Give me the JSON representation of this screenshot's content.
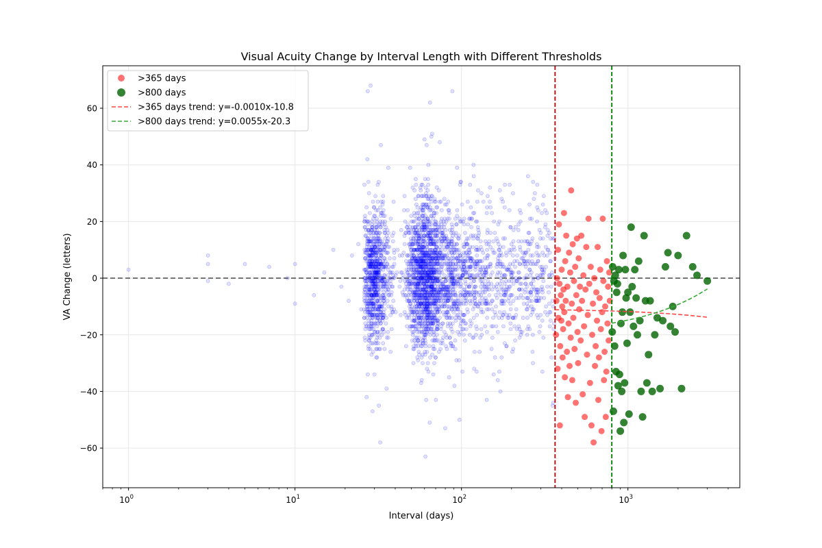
{
  "chart_data": {
    "type": "scatter",
    "title": "Visual Acuity Change by Interval Length with Different Thresholds",
    "xlabel": "Interval (days)",
    "ylabel": "VA Change (letters)",
    "xscale": "log",
    "xlim": [
      0.7,
      4700
    ],
    "ylim": [
      -74,
      75
    ],
    "x_ticks": [
      {
        "value": 1,
        "base": "10",
        "exp": "0"
      },
      {
        "value": 10,
        "base": "10",
        "exp": "1"
      },
      {
        "value": 100,
        "base": "10",
        "exp": "2"
      },
      {
        "value": 1000,
        "base": "10",
        "exp": "3"
      }
    ],
    "y_ticks": [
      {
        "value": -60,
        "label": "−60"
      },
      {
        "value": -40,
        "label": "−40"
      },
      {
        "value": -20,
        "label": "−20"
      },
      {
        "value": 0,
        "label": "0"
      },
      {
        "value": 20,
        "label": "20"
      },
      {
        "value": 40,
        "label": "40"
      },
      {
        "value": 60,
        "label": "60"
      }
    ],
    "grid": true,
    "legend_position": "top-left",
    "colors": {
      "all": "#0000ff",
      "gt365": "#ff0000",
      "gt800": "#006400",
      "gt365_trend": "#ff4444",
      "gt800_trend": "#33aa33",
      "zero_line": "#555555"
    },
    "vertical_lines": [
      {
        "x": 365,
        "color": "#cc0000"
      },
      {
        "x": 800,
        "color": "#008000"
      }
    ],
    "series": [
      {
        "name": ">365 days",
        "marker": "circle",
        "color": "#ff0000",
        "points": [
          [
            370,
            -20
          ],
          [
            372,
            -8
          ],
          [
            375,
            0
          ],
          [
            378,
            -32
          ],
          [
            380,
            10
          ],
          [
            382,
            -14
          ],
          [
            385,
            19
          ],
          [
            388,
            -2
          ],
          [
            390,
            -52
          ],
          [
            392,
            -24
          ],
          [
            395,
            -6
          ],
          [
            398,
            -15
          ],
          [
            400,
            3
          ],
          [
            403,
            -10
          ],
          [
            405,
            -28
          ],
          [
            408,
            -18
          ],
          [
            410,
            -4
          ],
          [
            413,
            23
          ],
          [
            415,
            -12
          ],
          [
            418,
            -35
          ],
          [
            420,
            6
          ],
          [
            423,
            -8
          ],
          [
            426,
            15
          ],
          [
            430,
            -26
          ],
          [
            433,
            -3
          ],
          [
            436,
            -42
          ],
          [
            440,
            -16
          ],
          [
            443,
            9
          ],
          [
            446,
            -31
          ],
          [
            450,
            2
          ],
          [
            453,
            -21
          ],
          [
            456,
            31
          ],
          [
            460,
            -9
          ],
          [
            463,
            -36
          ],
          [
            466,
            12
          ],
          [
            470,
            -14
          ],
          [
            474,
            -1
          ],
          [
            478,
            -25
          ],
          [
            482,
            4
          ],
          [
            486,
            -44
          ],
          [
            490,
            -6
          ],
          [
            494,
            14
          ],
          [
            498,
            -19
          ],
          [
            502,
            -30
          ],
          [
            506,
            7
          ],
          [
            510,
            -11
          ],
          [
            515,
            -3
          ],
          [
            520,
            -22
          ],
          [
            525,
            15
          ],
          [
            530,
            -8
          ],
          [
            535,
            -41
          ],
          [
            540,
            1
          ],
          [
            545,
            -17
          ],
          [
            550,
            -49
          ],
          [
            556,
            -4
          ],
          [
            562,
            11
          ],
          [
            568,
            -27
          ],
          [
            574,
            -13
          ],
          [
            580,
            21
          ],
          [
            586,
            -2
          ],
          [
            592,
            -37
          ],
          [
            598,
            4
          ],
          [
            604,
            -52
          ],
          [
            610,
            -20
          ],
          [
            616,
            -9
          ],
          [
            622,
            -58
          ],
          [
            628,
            0
          ],
          [
            634,
            -31
          ],
          [
            640,
            -24
          ],
          [
            646,
            -5
          ],
          [
            652,
            -15
          ],
          [
            658,
            11
          ],
          [
            664,
            -43
          ],
          [
            670,
            -28
          ],
          [
            676,
            -7
          ],
          [
            682,
            3
          ],
          [
            688,
            -18
          ],
          [
            694,
            -54
          ],
          [
            700,
            -12
          ],
          [
            706,
            21
          ],
          [
            712,
            -1
          ],
          [
            718,
            -36
          ],
          [
            724,
            -26
          ],
          [
            730,
            -10
          ],
          [
            736,
            -49
          ],
          [
            742,
            -33
          ],
          [
            748,
            6
          ],
          [
            754,
            -16
          ],
          [
            760,
            -3
          ],
          [
            766,
            -22
          ],
          [
            772,
            2
          ],
          [
            778,
            -8
          ]
        ]
      },
      {
        "name": ">800 days",
        "marker": "circle",
        "color": "#006400",
        "points": [
          [
            805,
            -19
          ],
          [
            810,
            4
          ],
          [
            818,
            -47
          ],
          [
            825,
            -1
          ],
          [
            832,
            -24
          ],
          [
            840,
            1
          ],
          [
            848,
            -33
          ],
          [
            856,
            -5
          ],
          [
            865,
            -2
          ],
          [
            873,
            -38
          ],
          [
            882,
            3
          ],
          [
            890,
            -34
          ],
          [
            900,
            -54
          ],
          [
            908,
            -16
          ],
          [
            918,
            -40
          ],
          [
            926,
            -12
          ],
          [
            935,
            8
          ],
          [
            945,
            -51
          ],
          [
            955,
            -37
          ],
          [
            965,
            3
          ],
          [
            975,
            -7
          ],
          [
            988,
            -23
          ],
          [
            1000,
            -5
          ],
          [
            1015,
            -48
          ],
          [
            1030,
            -12
          ],
          [
            1045,
            18
          ],
          [
            1060,
            -3
          ],
          [
            1080,
            -17
          ],
          [
            1100,
            3
          ],
          [
            1120,
            -7
          ],
          [
            1140,
            -20
          ],
          [
            1160,
            6
          ],
          [
            1180,
            -15
          ],
          [
            1200,
            -40
          ],
          [
            1225,
            -49
          ],
          [
            1250,
            15
          ],
          [
            1275,
            -8
          ],
          [
            1300,
            -37
          ],
          [
            1330,
            -27
          ],
          [
            1360,
            -8
          ],
          [
            1400,
            -40
          ],
          [
            1450,
            -20
          ],
          [
            1500,
            -14
          ],
          [
            1560,
            -39
          ],
          [
            1620,
            -15
          ],
          [
            1680,
            4
          ],
          [
            1740,
            9
          ],
          [
            1800,
            -17
          ],
          [
            1860,
            -10
          ],
          [
            1920,
            -19
          ],
          [
            2000,
            8
          ],
          [
            2100,
            -39
          ],
          [
            2250,
            15
          ],
          [
            2450,
            4
          ],
          [
            2600,
            1
          ],
          [
            3000,
            -1
          ]
        ]
      }
    ],
    "trendlines": [
      {
        "name": ">365 days trend: y=-0.0010x-10.8",
        "slope": -0.001,
        "intercept": -10.8,
        "x_range": [
          365,
          3000
        ],
        "color": "#ff4444"
      },
      {
        "name": ">800 days trend: y=0.0055x-20.3",
        "slope": 0.0055,
        "intercept": -20.3,
        "x_range": [
          800,
          3000
        ],
        "color": "#33aa33"
      }
    ],
    "background_points": {
      "name": "",
      "color": "#0000ff",
      "note_count_shown": "dense cloud",
      "clusters": [
        {
          "x_center": 30,
          "x_spread": 0.05,
          "y_sd": 12,
          "count": 900
        },
        {
          "x_center": 60,
          "x_spread": 0.05,
          "y_sd": 13,
          "count": 1100
        },
        {
          "x_center": 85,
          "x_spread": 0.12,
          "y_sd": 11,
          "count": 700
        },
        {
          "x_center": 150,
          "x_spread": 0.25,
          "y_sd": 12,
          "count": 500
        },
        {
          "x_center": 260,
          "x_spread": 0.15,
          "y_sd": 13,
          "count": 250
        }
      ],
      "sparse": [
        [
          1,
          3
        ],
        [
          3,
          8
        ],
        [
          3,
          -1
        ],
        [
          3,
          5
        ],
        [
          4,
          -2
        ],
        [
          5,
          5
        ],
        [
          7,
          4
        ],
        [
          9,
          0
        ],
        [
          10,
          -9
        ],
        [
          10,
          5
        ],
        [
          13,
          -6
        ],
        [
          15,
          2
        ],
        [
          17,
          10
        ],
        [
          19,
          -3
        ],
        [
          21,
          -8
        ],
        [
          22,
          8
        ],
        [
          24,
          12
        ],
        [
          25,
          -11
        ],
        [
          26,
          0
        ]
      ]
    }
  }
}
